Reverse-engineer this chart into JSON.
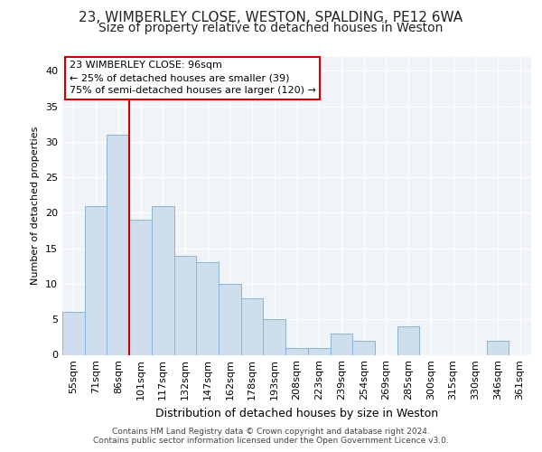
{
  "title_line1": "23, WIMBERLEY CLOSE, WESTON, SPALDING, PE12 6WA",
  "title_line2": "Size of property relative to detached houses in Weston",
  "xlabel": "Distribution of detached houses by size in Weston",
  "ylabel": "Number of detached properties",
  "categories": [
    "55sqm",
    "71sqm",
    "86sqm",
    "101sqm",
    "117sqm",
    "132sqm",
    "147sqm",
    "162sqm",
    "178sqm",
    "193sqm",
    "208sqm",
    "223sqm",
    "239sqm",
    "254sqm",
    "269sqm",
    "285sqm",
    "300sqm",
    "315sqm",
    "330sqm",
    "346sqm",
    "361sqm"
  ],
  "values": [
    6,
    21,
    31,
    19,
    21,
    14,
    13,
    10,
    8,
    5,
    1,
    1,
    3,
    2,
    0,
    4,
    0,
    0,
    0,
    2,
    0
  ],
  "bar_color": "#cfdeed",
  "bar_edge_color": "#8ab4d4",
  "vline_color": "#cc0000",
  "vline_x": 2.5,
  "annotation_title": "23 WIMBERLEY CLOSE: 96sqm",
  "annotation_line2": "← 25% of detached houses are smaller (39)",
  "annotation_line3": "75% of semi-detached houses are larger (120) →",
  "annotation_box_facecolor": "#ffffff",
  "annotation_box_edgecolor": "#cc0000",
  "ylim": [
    0,
    42
  ],
  "yticks": [
    0,
    5,
    10,
    15,
    20,
    25,
    30,
    35,
    40
  ],
  "fig_facecolor": "#ffffff",
  "plot_facecolor": "#f0f4f8",
  "grid_color": "#ffffff",
  "grid_linewidth": 1.0,
  "title1_fontsize": 11,
  "title2_fontsize": 10,
  "xlabel_fontsize": 9,
  "ylabel_fontsize": 8,
  "tick_fontsize": 8,
  "ann_fontsize": 8,
  "footer_line1": "Contains HM Land Registry data © Crown copyright and database right 2024.",
  "footer_line2": "Contains public sector information licensed under the Open Government Licence v3.0.",
  "footer_fontsize": 6.5
}
